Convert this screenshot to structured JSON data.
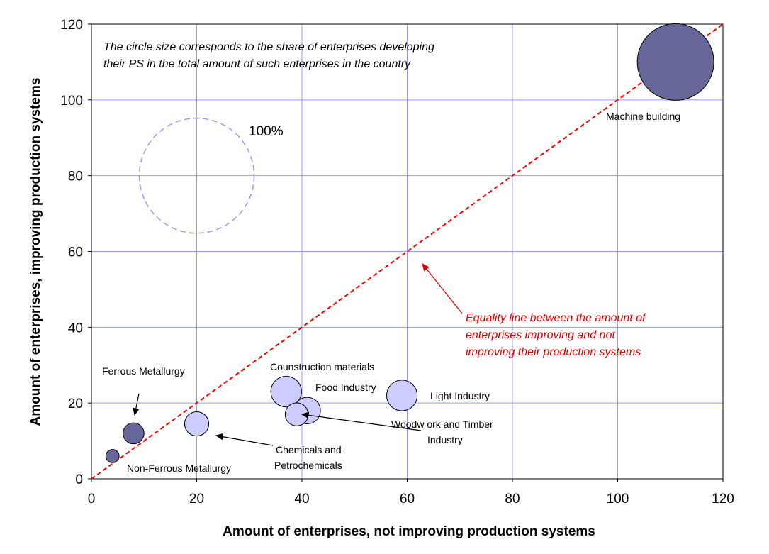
{
  "chart_data": {
    "type": "bubble",
    "xlabel": "Amount of enterprises, not improving production systems",
    "ylabel": "Amount of enterprises, improving production systems",
    "xlim": [
      0,
      120
    ],
    "ylim": [
      0,
      120
    ],
    "x_ticks": [
      "0",
      "20",
      "40",
      "60",
      "80",
      "100",
      "120"
    ],
    "y_ticks": [
      "0",
      "20",
      "40",
      "60",
      "80",
      "100",
      "120"
    ],
    "grid": true,
    "colors": {
      "dark": "#666699",
      "light": "#ccccff",
      "grid": "#9999ff",
      "equality_line": "#ff0000",
      "reference": "#9999ff"
    },
    "points": [
      {
        "label": "Machine building",
        "x": 111,
        "y": 110,
        "size": 1.0,
        "color": "dark"
      },
      {
        "label": "Ferrous Metallurgy",
        "x": 8,
        "y": 12,
        "size": 0.075,
        "color": "dark"
      },
      {
        "label": "Non-Ferrous Metallurgy",
        "x": 4,
        "y": 6,
        "size": 0.03,
        "color": "dark"
      },
      {
        "label": "Chemicals and Petrochemicals",
        "x": 20,
        "y": 14.5,
        "size": 0.1,
        "color": "light"
      },
      {
        "label": "Counstruction materials",
        "x": 37,
        "y": 23,
        "size": 0.16,
        "color": "light"
      },
      {
        "label": "Food Industry",
        "x": 41,
        "y": 18,
        "size": 0.12,
        "color": "light"
      },
      {
        "label": "Woodw ork and Timber Industry",
        "x": 39,
        "y": 17,
        "size": 0.09,
        "color": "light"
      },
      {
        "label": "Light Industry",
        "x": 59,
        "y": 22,
        "size": 0.16,
        "color": "light"
      }
    ],
    "reference_circle": {
      "label": "100%",
      "x": 20,
      "y": 80,
      "size": 1.0
    },
    "equality_line": {
      "from": [
        0,
        0
      ],
      "to": [
        120,
        120
      ]
    },
    "annotations": {
      "bubble_note": [
        "The circle size corresponds to the share of enterprises developing",
        "their PS in the total amount of such enterprises in the country"
      ],
      "equality_note": [
        "Equality line between the amount of",
        "enterprises improving and not",
        "improving their production systems"
      ],
      "woodwork_label": [
        "Woodw ork and Timber",
        "Industry"
      ],
      "chemicals_label": [
        "Chemicals and",
        "Petrochemicals"
      ]
    }
  }
}
